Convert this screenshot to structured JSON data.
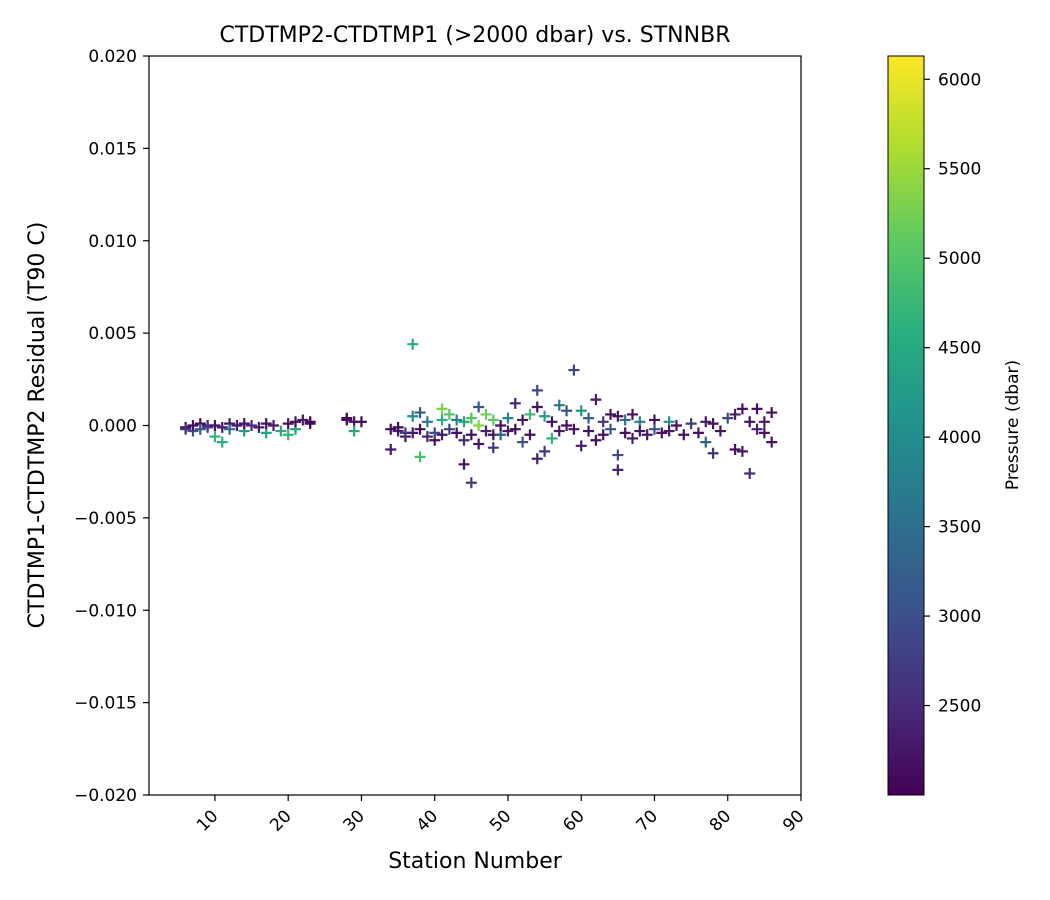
{
  "chart_data": {
    "type": "scatter",
    "title": "CTDTMP2-CTDTMP1 (>2000 dbar) vs. STNNBR",
    "xlabel": "Station Number",
    "ylabel": "CTDTMP1-CTDTMP2 Residual (T90 C)",
    "xlim": [
      1,
      90
    ],
    "ylim": [
      -0.02,
      0.02
    ],
    "xticks": [
      10,
      20,
      30,
      40,
      50,
      60,
      70,
      80,
      90
    ],
    "xtick_labels": [
      "10",
      "20",
      "30",
      "40",
      "50",
      "60",
      "70",
      "80",
      "90"
    ],
    "yticks": [
      -0.02,
      -0.015,
      -0.01,
      -0.005,
      0.0,
      0.005,
      0.01,
      0.015,
      0.02
    ],
    "ytick_labels": [
      "−0.020",
      "−0.015",
      "−0.010",
      "−0.005",
      "0.000",
      "0.005",
      "0.010",
      "0.015",
      "0.020"
    ],
    "marker": "+",
    "colorbar": {
      "label": "Pressure (dbar)",
      "colormap": "viridis",
      "range": [
        2000,
        6130
      ],
      "ticks": [
        2500,
        3000,
        3500,
        4000,
        4500,
        5000,
        5500,
        6000
      ],
      "tick_labels": [
        "2500",
        "3000",
        "3500",
        "4000",
        "4500",
        "5000",
        "5500",
        "6000"
      ]
    },
    "points": [
      {
        "x": 6,
        "y": -0.0001,
        "p": 2100
      },
      {
        "x": 6,
        "y": -0.0002,
        "p": 2600
      },
      {
        "x": 7,
        "y": -0.0003,
        "p": 3000
      },
      {
        "x": 7,
        "y": 0.0,
        "p": 2200
      },
      {
        "x": 8,
        "y": 0.0001,
        "p": 2100
      },
      {
        "x": 8,
        "y": -0.0002,
        "p": 3200
      },
      {
        "x": 9,
        "y": 0.0,
        "p": 2300
      },
      {
        "x": 9,
        "y": -0.0001,
        "p": 2800
      },
      {
        "x": 10,
        "y": -0.0006,
        "p": 4700
      },
      {
        "x": 10,
        "y": 0.0,
        "p": 2200
      },
      {
        "x": 11,
        "y": -0.0009,
        "p": 4600
      },
      {
        "x": 11,
        "y": -0.0001,
        "p": 2300
      },
      {
        "x": 12,
        "y": 0.0001,
        "p": 2200
      },
      {
        "x": 12,
        "y": -0.0002,
        "p": 3400
      },
      {
        "x": 13,
        "y": 0.0,
        "p": 2300
      },
      {
        "x": 14,
        "y": -0.0003,
        "p": 4200
      },
      {
        "x": 14,
        "y": 0.0001,
        "p": 2200
      },
      {
        "x": 15,
        "y": 0.0,
        "p": 2500
      },
      {
        "x": 16,
        "y": -0.0001,
        "p": 2300
      },
      {
        "x": 17,
        "y": -0.0004,
        "p": 4400
      },
      {
        "x": 17,
        "y": 0.0001,
        "p": 2200
      },
      {
        "x": 18,
        "y": 0.0,
        "p": 2300
      },
      {
        "x": 19,
        "y": -0.0003,
        "p": 4500
      },
      {
        "x": 20,
        "y": -0.0005,
        "p": 4700
      },
      {
        "x": 20,
        "y": 0.0001,
        "p": 2200
      },
      {
        "x": 21,
        "y": -0.0002,
        "p": 4300
      },
      {
        "x": 21,
        "y": 0.0002,
        "p": 2200
      },
      {
        "x": 22,
        "y": 0.0003,
        "p": 2300
      },
      {
        "x": 23,
        "y": 0.0001,
        "p": 2200
      },
      {
        "x": 23,
        "y": 0.0002,
        "p": 2100
      },
      {
        "x": 28,
        "y": 0.0003,
        "p": 2200
      },
      {
        "x": 28,
        "y": 0.0004,
        "p": 2100
      },
      {
        "x": 29,
        "y": 0.0002,
        "p": 2200
      },
      {
        "x": 29,
        "y": -0.0003,
        "p": 4500
      },
      {
        "x": 30,
        "y": 0.0002,
        "p": 2100
      },
      {
        "x": 34,
        "y": -0.0013,
        "p": 2300
      },
      {
        "x": 34,
        "y": -0.0002,
        "p": 2100
      },
      {
        "x": 35,
        "y": -0.0003,
        "p": 2400
      },
      {
        "x": 35,
        "y": -0.0001,
        "p": 2100
      },
      {
        "x": 36,
        "y": -0.0006,
        "p": 2200
      },
      {
        "x": 36,
        "y": -0.0004,
        "p": 2700
      },
      {
        "x": 37,
        "y": 0.0044,
        "p": 4600
      },
      {
        "x": 37,
        "y": 0.0005,
        "p": 4000
      },
      {
        "x": 37,
        "y": -0.0004,
        "p": 2300
      },
      {
        "x": 38,
        "y": -0.0017,
        "p": 4900
      },
      {
        "x": 38,
        "y": 0.0007,
        "p": 3100
      },
      {
        "x": 38,
        "y": -0.0002,
        "p": 2200
      },
      {
        "x": 39,
        "y": -0.0006,
        "p": 2400
      },
      {
        "x": 39,
        "y": 0.0002,
        "p": 3600
      },
      {
        "x": 40,
        "y": -0.0008,
        "p": 2200
      },
      {
        "x": 40,
        "y": -0.0004,
        "p": 2900
      },
      {
        "x": 41,
        "y": 0.0009,
        "p": 5300
      },
      {
        "x": 41,
        "y": 0.0003,
        "p": 4600
      },
      {
        "x": 41,
        "y": -0.0005,
        "p": 2300
      },
      {
        "x": 42,
        "y": 0.0006,
        "p": 5000
      },
      {
        "x": 42,
        "y": -0.0002,
        "p": 2800
      },
      {
        "x": 43,
        "y": -0.0004,
        "p": 2200
      },
      {
        "x": 43,
        "y": 0.0003,
        "p": 3800
      },
      {
        "x": 44,
        "y": -0.0021,
        "p": 2200
      },
      {
        "x": 44,
        "y": -0.0008,
        "p": 2500
      },
      {
        "x": 44,
        "y": 0.0002,
        "p": 4300
      },
      {
        "x": 45,
        "y": -0.0031,
        "p": 2700
      },
      {
        "x": 45,
        "y": 0.0004,
        "p": 5000
      },
      {
        "x": 45,
        "y": -0.0005,
        "p": 2200
      },
      {
        "x": 46,
        "y": 0.001,
        "p": 3100
      },
      {
        "x": 46,
        "y": -0.001,
        "p": 2200
      },
      {
        "x": 46,
        "y": 0.0,
        "p": 5400
      },
      {
        "x": 47,
        "y": 0.0006,
        "p": 5200
      },
      {
        "x": 47,
        "y": -0.0003,
        "p": 2400
      },
      {
        "x": 48,
        "y": -0.0012,
        "p": 2600
      },
      {
        "x": 48,
        "y": 0.0003,
        "p": 5100
      },
      {
        "x": 48,
        "y": -0.0005,
        "p": 2200
      },
      {
        "x": 49,
        "y": -0.0005,
        "p": 3300
      },
      {
        "x": 49,
        "y": 0.0,
        "p": 2200
      },
      {
        "x": 50,
        "y": -0.0003,
        "p": 2300
      },
      {
        "x": 50,
        "y": 0.0004,
        "p": 3900
      },
      {
        "x": 51,
        "y": 0.0012,
        "p": 2400
      },
      {
        "x": 51,
        "y": -0.0002,
        "p": 2200
      },
      {
        "x": 52,
        "y": -0.0009,
        "p": 3000
      },
      {
        "x": 52,
        "y": 0.0003,
        "p": 2300
      },
      {
        "x": 53,
        "y": -0.0005,
        "p": 2200
      },
      {
        "x": 53,
        "y": 0.0006,
        "p": 4800
      },
      {
        "x": 54,
        "y": 0.0019,
        "p": 2900
      },
      {
        "x": 54,
        "y": -0.0018,
        "p": 2400
      },
      {
        "x": 54,
        "y": 0.001,
        "p": 2200
      },
      {
        "x": 55,
        "y": -0.0014,
        "p": 2600
      },
      {
        "x": 55,
        "y": 0.0005,
        "p": 4300
      },
      {
        "x": 56,
        "y": -0.0007,
        "p": 4600
      },
      {
        "x": 56,
        "y": 0.0002,
        "p": 2200
      },
      {
        "x": 57,
        "y": 0.0011,
        "p": 3600
      },
      {
        "x": 57,
        "y": -0.0003,
        "p": 2300
      },
      {
        "x": 58,
        "y": 0.0,
        "p": 2200
      },
      {
        "x": 58,
        "y": 0.0008,
        "p": 3000
      },
      {
        "x": 59,
        "y": 0.003,
        "p": 2800
      },
      {
        "x": 59,
        "y": -0.0002,
        "p": 2200
      },
      {
        "x": 60,
        "y": -0.0011,
        "p": 2300
      },
      {
        "x": 60,
        "y": 0.0008,
        "p": 4200
      },
      {
        "x": 61,
        "y": -0.0003,
        "p": 2200
      },
      {
        "x": 61,
        "y": 0.0004,
        "p": 3300
      },
      {
        "x": 62,
        "y": 0.0014,
        "p": 2300
      },
      {
        "x": 62,
        "y": -0.0008,
        "p": 2200
      },
      {
        "x": 63,
        "y": 0.0002,
        "p": 2600
      },
      {
        "x": 63,
        "y": -0.0005,
        "p": 2200
      },
      {
        "x": 64,
        "y": 0.0006,
        "p": 2200
      },
      {
        "x": 64,
        "y": -0.0002,
        "p": 3100
      },
      {
        "x": 65,
        "y": -0.0024,
        "p": 2400
      },
      {
        "x": 65,
        "y": -0.0016,
        "p": 2900
      },
      {
        "x": 65,
        "y": 0.0005,
        "p": 2200
      },
      {
        "x": 66,
        "y": -0.0004,
        "p": 2200
      },
      {
        "x": 66,
        "y": 0.0003,
        "p": 3500
      },
      {
        "x": 67,
        "y": 0.0006,
        "p": 2200
      },
      {
        "x": 67,
        "y": -0.0007,
        "p": 2300
      },
      {
        "x": 68,
        "y": 0.0002,
        "p": 3800
      },
      {
        "x": 68,
        "y": -0.0003,
        "p": 2200
      },
      {
        "x": 69,
        "y": -0.0005,
        "p": 2300
      },
      {
        "x": 70,
        "y": 0.0003,
        "p": 2200
      },
      {
        "x": 70,
        "y": -0.0002,
        "p": 3000
      },
      {
        "x": 71,
        "y": -0.0004,
        "p": 2200
      },
      {
        "x": 72,
        "y": 0.0002,
        "p": 4100
      },
      {
        "x": 72,
        "y": -0.0003,
        "p": 2300
      },
      {
        "x": 73,
        "y": 0.0,
        "p": 2200
      },
      {
        "x": 74,
        "y": -0.0005,
        "p": 2200
      },
      {
        "x": 75,
        "y": 0.0001,
        "p": 2700
      },
      {
        "x": 76,
        "y": -0.0004,
        "p": 2200
      },
      {
        "x": 77,
        "y": 0.0002,
        "p": 2300
      },
      {
        "x": 77,
        "y": -0.0009,
        "p": 3300
      },
      {
        "x": 78,
        "y": -0.0015,
        "p": 2600
      },
      {
        "x": 78,
        "y": 0.0001,
        "p": 2200
      },
      {
        "x": 79,
        "y": -0.0003,
        "p": 2200
      },
      {
        "x": 80,
        "y": 0.0004,
        "p": 2900
      },
      {
        "x": 81,
        "y": -0.0013,
        "p": 2200
      },
      {
        "x": 81,
        "y": 0.0006,
        "p": 2300
      },
      {
        "x": 82,
        "y": 0.0009,
        "p": 2200
      },
      {
        "x": 82,
        "y": -0.0014,
        "p": 2300
      },
      {
        "x": 83,
        "y": -0.0026,
        "p": 2500
      },
      {
        "x": 83,
        "y": 0.0002,
        "p": 2200
      },
      {
        "x": 84,
        "y": 0.0009,
        "p": 2200
      },
      {
        "x": 84,
        "y": -0.0002,
        "p": 2400
      },
      {
        "x": 85,
        "y": 0.0002,
        "p": 2300
      },
      {
        "x": 85,
        "y": -0.0004,
        "p": 2200
      },
      {
        "x": 86,
        "y": -0.0009,
        "p": 2200
      },
      {
        "x": 86,
        "y": 0.0007,
        "p": 2200
      }
    ]
  }
}
